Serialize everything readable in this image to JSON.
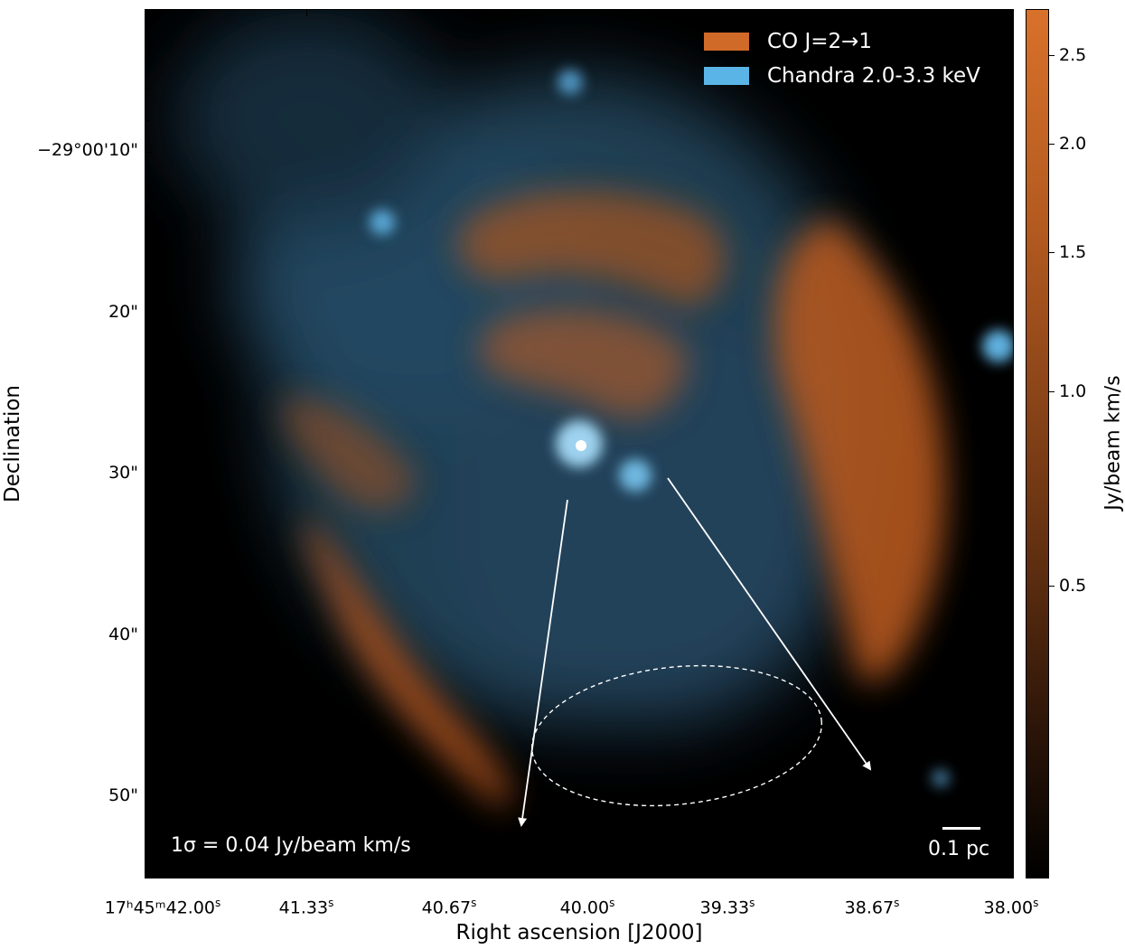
{
  "legend": {
    "items": [
      {
        "label": "CO J=2→1",
        "color": "#d06a28"
      },
      {
        "label": "Chandra 2.0-3.3 keV",
        "color": "#5ab5e6"
      }
    ]
  },
  "annotations": {
    "sigma_note": "1σ = 0.04 Jy/beam km/s",
    "scale_bar": "0.1 pc"
  },
  "colorbar": {
    "title": "Jy/beam km/s",
    "ticks": [
      "2.5",
      "2.0",
      "1.5",
      "1.0",
      "0.5"
    ]
  },
  "axes": {
    "y_title": "Declination",
    "x_title": "Right ascension [J2000]",
    "y_ticks": [
      "−29°00'10\"",
      "20\"",
      "30\"",
      "40\"",
      "50\""
    ],
    "x_ticks": [
      {
        "main": "17ʰ45ᵐ42.00",
        "sup": "s"
      },
      {
        "main": "41.33",
        "sup": "s"
      },
      {
        "main": "40.67",
        "sup": "s"
      },
      {
        "main": "40.00",
        "sup": "s"
      },
      {
        "main": "39.33",
        "sup": "s"
      },
      {
        "main": "38.67",
        "sup": "s"
      },
      {
        "main": "38.00",
        "sup": "s"
      }
    ]
  },
  "colors": {
    "co_emission": "#d06a28",
    "xray_emission": "#5ab5e6",
    "background": "#000000",
    "overlay_text": "#ffffff"
  }
}
